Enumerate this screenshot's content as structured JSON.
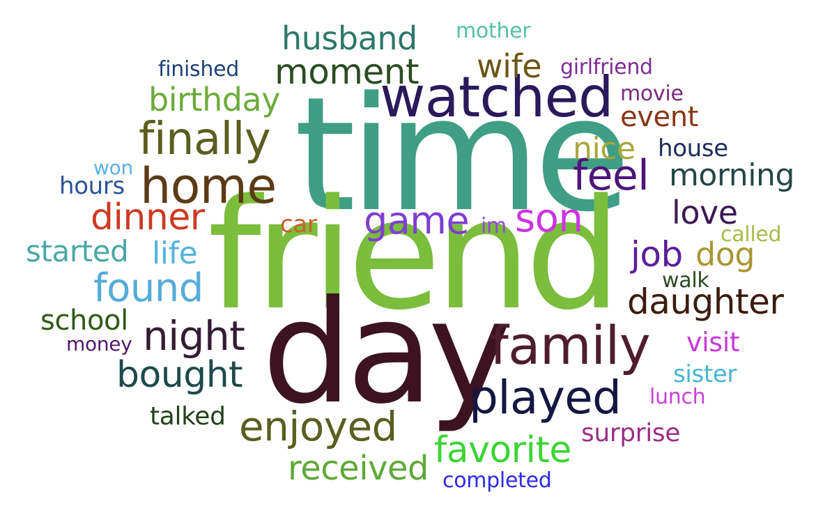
{
  "word_cloud": {
    "words": {
      "time": "time",
      "friend": "friend",
      "day": "day",
      "watched": "watched",
      "family": "family",
      "played": "played",
      "home": "home",
      "finally": "finally",
      "moment": "moment",
      "husband": "husband",
      "wife": "wife",
      "birthday": "birthday",
      "feel": "feel",
      "nice": "nice",
      "morning": "morning",
      "house": "house",
      "event": "event",
      "movie": "movie",
      "girlfriend": "girlfriend",
      "mother": "mother",
      "finished": "finished",
      "won": "won",
      "hours": "hours",
      "dinner": "dinner",
      "car": "car",
      "game": "game",
      "im": "im",
      "son": "son",
      "love": "love",
      "called": "called",
      "started": "started",
      "life": "life",
      "job": "job",
      "dog": "dog",
      "found": "found",
      "walk": "walk",
      "daughter": "daughter",
      "school": "school",
      "money": "money",
      "night": "night",
      "visit": "visit",
      "bought": "bought",
      "sister": "sister",
      "lunch": "lunch",
      "talked": "talked",
      "enjoyed": "enjoyed",
      "surprise": "surprise",
      "favorite": "favorite",
      "received": "received",
      "completed": "completed"
    }
  }
}
